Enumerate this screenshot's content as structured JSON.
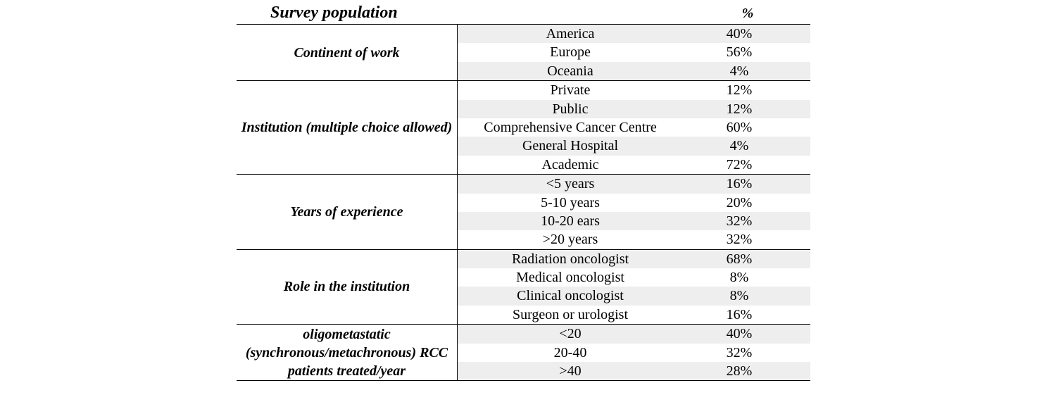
{
  "table": {
    "title": "Survey population",
    "pct_header": "%",
    "groups": [
      {
        "label": "Continent of work",
        "rows": [
          {
            "name": "America",
            "value": "40%"
          },
          {
            "name": "Europe",
            "value": "56%"
          },
          {
            "name": "Oceania",
            "value": "4%"
          }
        ]
      },
      {
        "label": "Institution (multiple choice allowed)",
        "rows": [
          {
            "name": "Private",
            "value": "12%"
          },
          {
            "name": "Public",
            "value": "12%"
          },
          {
            "name": "Comprehensive Cancer Centre",
            "value": "60%"
          },
          {
            "name": "General Hospital",
            "value": "4%"
          },
          {
            "name": "Academic",
            "value": "72%"
          }
        ]
      },
      {
        "label": "Years of experience",
        "rows": [
          {
            "name": "<5 years",
            "value": "16%"
          },
          {
            "name": "5-10 years",
            "value": "20%"
          },
          {
            "name": "10-20 ears",
            "value": "32%"
          },
          {
            "name": ">20 years",
            "value": "32%"
          }
        ]
      },
      {
        "label": "Role in the institution",
        "rows": [
          {
            "name": "Radiation oncologist",
            "value": "68%"
          },
          {
            "name": "Medical oncologist",
            "value": "8%"
          },
          {
            "name": "Clinical oncologist",
            "value": "8%"
          },
          {
            "name": "Surgeon or urologist",
            "value": "16%"
          }
        ]
      },
      {
        "label": "oligometastatic (synchronous/metachronous) RCC patients treated/year",
        "rows": [
          {
            "name": "<20",
            "value": "40%"
          },
          {
            "name": "20-40",
            "value": "32%"
          },
          {
            "name": ">40",
            "value": "28%"
          }
        ]
      }
    ]
  }
}
